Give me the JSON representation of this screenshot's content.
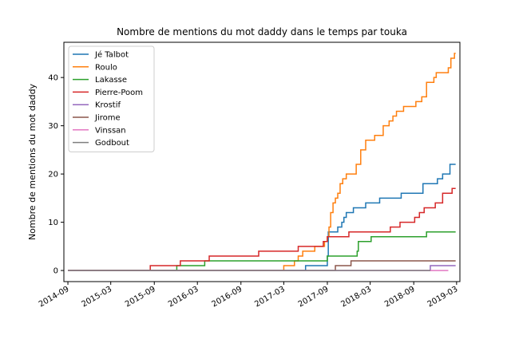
{
  "chart_data": {
    "type": "line",
    "title": "Nombre de mentions du mot daddy dans le temps par touka",
    "xlabel": "",
    "ylabel": "Nombre de mentions du mot daddy",
    "x_axis": "date",
    "xlim": [
      "2014-08-15",
      "2019-03-15"
    ],
    "ylim": [
      -2.3,
      47.3
    ],
    "x_ticks": [
      "2014-09",
      "2015-03",
      "2015-09",
      "2016-03",
      "2016-09",
      "2017-03",
      "2017-09",
      "2018-03",
      "2018-09",
      "2019-03"
    ],
    "y_ticks": [
      0,
      10,
      20,
      30,
      40
    ],
    "legend_position": "top-left",
    "grid": false,
    "series": [
      {
        "name": "Jé Talbot",
        "color": "#1f77b4",
        "points": [
          [
            "2014-09-01",
            0
          ],
          [
            "2017-06-01",
            0
          ],
          [
            "2017-06-01",
            1
          ],
          [
            "2017-09-01",
            1
          ],
          [
            "2017-09-01",
            3
          ],
          [
            "2017-09-05",
            3
          ],
          [
            "2017-09-05",
            8
          ],
          [
            "2017-10-15",
            8
          ],
          [
            "2017-10-15",
            9
          ],
          [
            "2017-11-01",
            9
          ],
          [
            "2017-11-01",
            10
          ],
          [
            "2017-11-10",
            10
          ],
          [
            "2017-11-10",
            11
          ],
          [
            "2017-11-20",
            11
          ],
          [
            "2017-11-20",
            12
          ],
          [
            "2017-12-20",
            12
          ],
          [
            "2017-12-20",
            13
          ],
          [
            "2018-02-10",
            13
          ],
          [
            "2018-02-10",
            14
          ],
          [
            "2018-04-10",
            14
          ],
          [
            "2018-04-10",
            15
          ],
          [
            "2018-07-10",
            15
          ],
          [
            "2018-07-10",
            16
          ],
          [
            "2018-10-10",
            16
          ],
          [
            "2018-10-10",
            18
          ],
          [
            "2018-12-10",
            18
          ],
          [
            "2018-12-10",
            19
          ],
          [
            "2019-01-01",
            19
          ],
          [
            "2019-01-01",
            20
          ],
          [
            "2019-02-01",
            20
          ],
          [
            "2019-02-01",
            22
          ],
          [
            "2019-02-25",
            22
          ]
        ]
      },
      {
        "name": "Roulo",
        "color": "#ff7f0e",
        "points": [
          [
            "2014-09-01",
            0
          ],
          [
            "2017-03-01",
            0
          ],
          [
            "2017-03-01",
            1
          ],
          [
            "2017-04-15",
            1
          ],
          [
            "2017-04-15",
            2
          ],
          [
            "2017-05-01",
            2
          ],
          [
            "2017-05-01",
            3
          ],
          [
            "2017-05-20",
            3
          ],
          [
            "2017-05-20",
            4
          ],
          [
            "2017-07-10",
            4
          ],
          [
            "2017-07-10",
            5
          ],
          [
            "2017-08-20",
            5
          ],
          [
            "2017-08-20",
            6
          ],
          [
            "2017-09-01",
            6
          ],
          [
            "2017-09-01",
            7
          ],
          [
            "2017-09-08",
            7
          ],
          [
            "2017-09-08",
            9
          ],
          [
            "2017-09-15",
            9
          ],
          [
            "2017-09-15",
            12
          ],
          [
            "2017-09-25",
            12
          ],
          [
            "2017-09-25",
            14
          ],
          [
            "2017-10-05",
            14
          ],
          [
            "2017-10-05",
            15
          ],
          [
            "2017-10-15",
            15
          ],
          [
            "2017-10-15",
            16
          ],
          [
            "2017-10-25",
            16
          ],
          [
            "2017-10-25",
            18
          ],
          [
            "2017-11-05",
            18
          ],
          [
            "2017-11-05",
            19
          ],
          [
            "2017-11-20",
            19
          ],
          [
            "2017-11-20",
            20
          ],
          [
            "2018-01-01",
            20
          ],
          [
            "2018-01-01",
            22
          ],
          [
            "2018-01-20",
            22
          ],
          [
            "2018-01-20",
            25
          ],
          [
            "2018-02-10",
            25
          ],
          [
            "2018-02-10",
            27
          ],
          [
            "2018-03-20",
            27
          ],
          [
            "2018-03-20",
            28
          ],
          [
            "2018-04-25",
            28
          ],
          [
            "2018-04-25",
            30
          ],
          [
            "2018-05-20",
            30
          ],
          [
            "2018-05-20",
            31
          ],
          [
            "2018-06-05",
            31
          ],
          [
            "2018-06-05",
            32
          ],
          [
            "2018-06-20",
            32
          ],
          [
            "2018-06-20",
            33
          ],
          [
            "2018-07-20",
            33
          ],
          [
            "2018-07-20",
            34
          ],
          [
            "2018-09-10",
            34
          ],
          [
            "2018-09-10",
            35
          ],
          [
            "2018-10-05",
            35
          ],
          [
            "2018-10-05",
            36
          ],
          [
            "2018-10-25",
            36
          ],
          [
            "2018-10-25",
            39
          ],
          [
            "2018-11-25",
            39
          ],
          [
            "2018-11-25",
            40
          ],
          [
            "2018-12-05",
            40
          ],
          [
            "2018-12-05",
            41
          ],
          [
            "2019-01-25",
            41
          ],
          [
            "2019-01-25",
            42
          ],
          [
            "2019-02-05",
            42
          ],
          [
            "2019-02-05",
            44
          ],
          [
            "2019-02-20",
            44
          ],
          [
            "2019-02-20",
            45
          ],
          [
            "2019-02-25",
            45
          ]
        ]
      },
      {
        "name": "Lakasse",
        "color": "#2ca02c",
        "points": [
          [
            "2014-09-01",
            0
          ],
          [
            "2015-12-05",
            0
          ],
          [
            "2015-12-05",
            1
          ],
          [
            "2016-04-01",
            1
          ],
          [
            "2016-04-01",
            2
          ],
          [
            "2017-09-01",
            2
          ],
          [
            "2017-09-01",
            3
          ],
          [
            "2018-01-05",
            3
          ],
          [
            "2018-01-05",
            4
          ],
          [
            "2018-01-10",
            4
          ],
          [
            "2018-01-10",
            6
          ],
          [
            "2018-03-05",
            6
          ],
          [
            "2018-03-05",
            7
          ],
          [
            "2018-10-25",
            7
          ],
          [
            "2018-10-25",
            8
          ],
          [
            "2019-02-25",
            8
          ]
        ]
      },
      {
        "name": "Pierre-Poom",
        "color": "#d62728",
        "points": [
          [
            "2014-09-01",
            0
          ],
          [
            "2015-08-15",
            0
          ],
          [
            "2015-08-15",
            1
          ],
          [
            "2015-12-20",
            1
          ],
          [
            "2015-12-20",
            2
          ],
          [
            "2016-04-20",
            2
          ],
          [
            "2016-04-20",
            3
          ],
          [
            "2016-11-15",
            3
          ],
          [
            "2016-11-15",
            4
          ],
          [
            "2017-05-01",
            4
          ],
          [
            "2017-05-01",
            5
          ],
          [
            "2017-08-15",
            5
          ],
          [
            "2017-08-15",
            6
          ],
          [
            "2017-09-01",
            6
          ],
          [
            "2017-09-01",
            7
          ],
          [
            "2017-12-01",
            7
          ],
          [
            "2017-12-01",
            8
          ],
          [
            "2018-05-25",
            8
          ],
          [
            "2018-05-25",
            9
          ],
          [
            "2018-07-05",
            9
          ],
          [
            "2018-07-05",
            10
          ],
          [
            "2018-09-05",
            10
          ],
          [
            "2018-09-05",
            11
          ],
          [
            "2018-09-25",
            11
          ],
          [
            "2018-09-25",
            12
          ],
          [
            "2018-10-15",
            12
          ],
          [
            "2018-10-15",
            13
          ],
          [
            "2018-12-01",
            13
          ],
          [
            "2018-12-01",
            14
          ],
          [
            "2019-01-01",
            14
          ],
          [
            "2019-01-01",
            16
          ],
          [
            "2019-02-10",
            16
          ],
          [
            "2019-02-10",
            17
          ],
          [
            "2019-02-25",
            17
          ]
        ]
      },
      {
        "name": "Krostif",
        "color": "#9467bd",
        "points": [
          [
            "2014-09-01",
            0
          ],
          [
            "2018-11-10",
            0
          ],
          [
            "2018-11-10",
            1
          ],
          [
            "2019-02-25",
            1
          ]
        ]
      },
      {
        "name": "Jirome",
        "color": "#8c564b",
        "points": [
          [
            "2014-09-01",
            0
          ],
          [
            "2017-10-05",
            0
          ],
          [
            "2017-10-05",
            1
          ],
          [
            "2017-12-10",
            1
          ],
          [
            "2017-12-10",
            2
          ],
          [
            "2019-02-25",
            2
          ]
        ]
      },
      {
        "name": "Vinssan",
        "color": "#e377c2",
        "points": [
          [
            "2014-09-01",
            0
          ],
          [
            "2019-01-25",
            0
          ]
        ]
      },
      {
        "name": "Godbout",
        "color": "#7f7f7f",
        "points": [
          [
            "2014-09-01",
            0
          ],
          [
            "2018-11-10",
            0
          ]
        ]
      }
    ]
  }
}
